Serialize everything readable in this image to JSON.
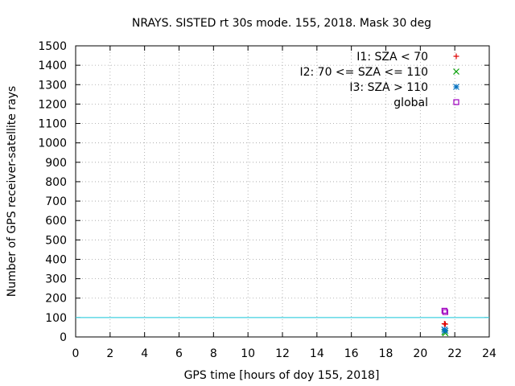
{
  "chart_data": {
    "type": "scatter",
    "title": "NRAYS. SISTED rt 30s mode. 155, 2018. Mask 30 deg",
    "xlabel": "GPS time [hours of doy 155, 2018]",
    "ylabel": "Number of GPS receiver-satellite rays",
    "xlim": [
      0,
      24
    ],
    "ylim": [
      0,
      1500
    ],
    "xticks": [
      0,
      2,
      4,
      6,
      8,
      10,
      12,
      14,
      16,
      18,
      20,
      22,
      24
    ],
    "yticks": [
      0,
      100,
      200,
      300,
      400,
      500,
      600,
      700,
      800,
      900,
      1000,
      1100,
      1200,
      1300,
      1400,
      1500
    ],
    "grid": true,
    "legend_position": "top-right",
    "threshold_line": {
      "y": 100,
      "color": "#40d0e0"
    },
    "series": [
      {
        "name": "I1: SZA < 70",
        "marker": "plus",
        "color": "#e00000",
        "points": [
          {
            "x": 21.4,
            "y": 68
          },
          {
            "x": 21.45,
            "y": 66
          }
        ]
      },
      {
        "name": "I2: 70 <= SZA <= 110",
        "marker": "cross",
        "color": "#00a000",
        "points": [
          {
            "x": 21.4,
            "y": 25
          },
          {
            "x": 21.45,
            "y": 20
          }
        ]
      },
      {
        "name": "I3: SZA > 110",
        "marker": "star",
        "color": "#0070c0",
        "points": [
          {
            "x": 21.4,
            "y": 38
          },
          {
            "x": 21.45,
            "y": 32
          }
        ]
      },
      {
        "name": "global",
        "marker": "square",
        "color": "#a000c0",
        "points": [
          {
            "x": 21.4,
            "y": 135
          },
          {
            "x": 21.45,
            "y": 128
          }
        ]
      }
    ]
  }
}
